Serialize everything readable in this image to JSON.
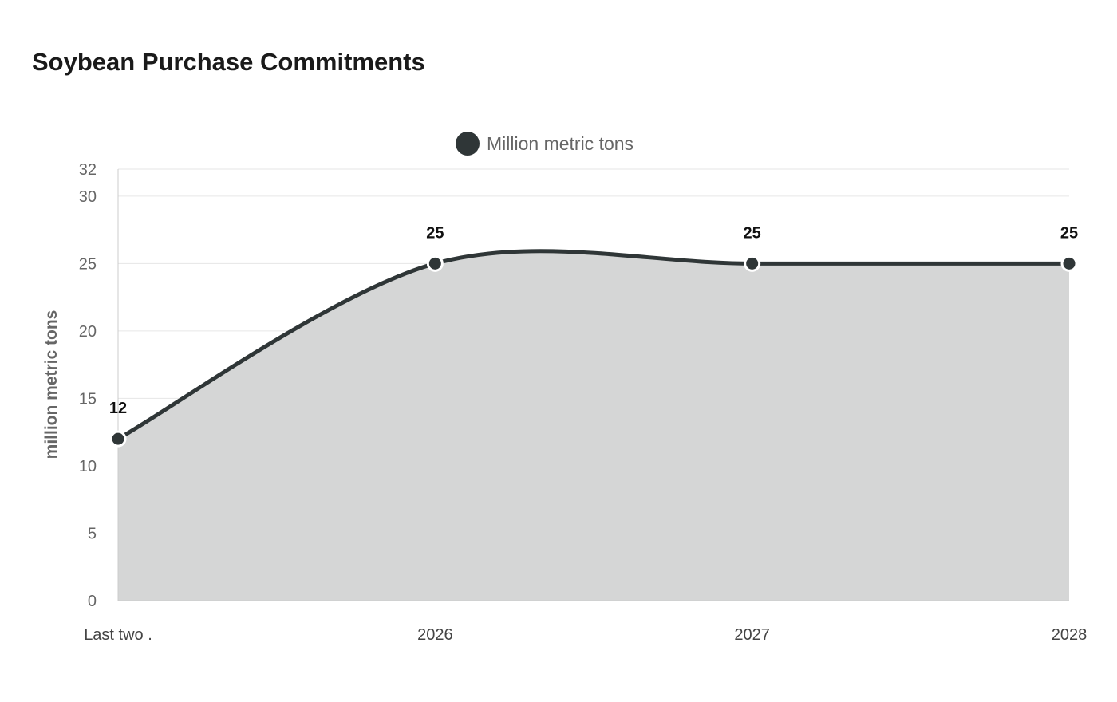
{
  "chart_data": {
    "type": "area",
    "title": "Soybean Purchase Commitments",
    "ylabel": "million metric tons",
    "xlabel": "",
    "categories": [
      "Last two .",
      "2026",
      "2027",
      "2028"
    ],
    "series": [
      {
        "name": "Million metric tons",
        "values": [
          12,
          25,
          25,
          25
        ]
      }
    ],
    "ylim": [
      0,
      32
    ],
    "yticks": [
      0,
      5,
      10,
      15,
      20,
      25,
      30,
      32
    ],
    "grid": true,
    "legend_position": "top-center",
    "line_color": "#2f3637",
    "area_color": "#d5d6d6",
    "data_labels": true
  }
}
